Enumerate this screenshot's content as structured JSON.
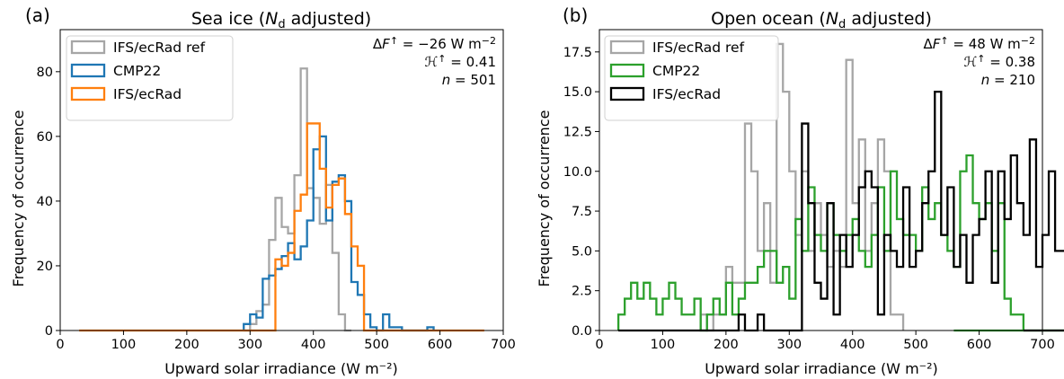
{
  "chart_data": [
    {
      "type": "histogram",
      "panel_label": "(a)",
      "title": "Sea ice (Nd adjusted)",
      "title_parts": {
        "prefix": "Sea ice (",
        "symbol": "N",
        "subscript": "d",
        "suffix": " adjusted)"
      },
      "xlabel": "Upward solar irradiance (W m⁻²)",
      "ylabel": "Frequency of occurrence",
      "xlim": [
        0,
        700
      ],
      "ylim": [
        0,
        93
      ],
      "xticks": [
        0,
        100,
        200,
        300,
        400,
        500,
        600,
        700
      ],
      "yticks": [
        0,
        20,
        40,
        60,
        80
      ],
      "ytick_labels": [
        "0",
        "20",
        "40",
        "60",
        "80"
      ],
      "bin_width": 10,
      "legend_position": "upper-left",
      "legend": [
        "IFS/ecRad ref",
        "CMP22",
        "IFS/ecRad"
      ],
      "annotations": [
        "ΔF↑ = −26 W m⁻²",
        "ℋ↑ = 0.41",
        "n = 501"
      ],
      "series": [
        {
          "name": "IFS/ecRad ref",
          "color": "#a6a6a6",
          "x_start": 290,
          "x_end": 460,
          "values": [
            0,
            2,
            6,
            8,
            28,
            41,
            32,
            30,
            48,
            81,
            44,
            41,
            33,
            45,
            24,
            5,
            0
          ]
        },
        {
          "name": "CMP22",
          "color": "#1f77b4",
          "x_start": 290,
          "x_end": 590,
          "values": [
            2,
            5,
            4,
            16,
            17,
            19,
            23,
            27,
            22,
            26,
            34,
            56,
            60,
            34,
            46,
            48,
            40,
            15,
            11,
            5,
            1,
            0,
            5,
            1,
            1,
            0,
            0,
            0,
            0,
            1
          ]
        },
        {
          "name": "IFS/ecRad",
          "color": "#ff7f0e",
          "x_start": 30,
          "x_end": 670,
          "values": [
            0,
            0,
            0,
            0,
            0,
            0,
            0,
            0,
            0,
            0,
            0,
            0,
            0,
            0,
            0,
            0,
            0,
            0,
            0,
            0,
            0,
            0,
            0,
            0,
            0,
            0,
            0,
            0,
            0,
            0,
            0,
            22,
            20,
            24,
            37,
            42,
            64,
            64,
            50,
            38,
            45,
            47,
            36,
            26,
            20,
            0,
            0,
            0,
            0,
            0,
            0,
            0,
            0,
            0,
            0,
            0,
            0,
            0,
            0,
            0,
            0,
            0,
            0,
            0
          ]
        }
      ]
    },
    {
      "type": "histogram",
      "panel_label": "(b)",
      "title": "Open ocean (Nd adjusted)",
      "title_parts": {
        "prefix": "Open ocean (",
        "symbol": "N",
        "subscript": "d",
        "suffix": " adjusted)"
      },
      "xlabel": "Upward solar irradiance (W m⁻²)",
      "ylabel": "Frequency of occurrence",
      "xlim": [
        0,
        700
      ],
      "ylim": [
        0,
        18.9
      ],
      "xticks": [
        0,
        100,
        200,
        300,
        400,
        500,
        600,
        700
      ],
      "yticks": [
        0,
        2.5,
        5,
        7.5,
        10,
        12.5,
        15,
        17.5
      ],
      "ytick_labels": [
        "0.0",
        "2.5",
        "5.0",
        "7.5",
        "10.0",
        "12.5",
        "15.0",
        "17.5"
      ],
      "bin_width": 10,
      "legend_position": "upper-left",
      "legend": [
        "IFS/ecRad ref",
        "CMP22",
        "IFS/ecRad"
      ],
      "annotations": [
        "ΔF↑ = 48 W m⁻²",
        "ℋ↑ = 0.38",
        "n = 210"
      ],
      "series": [
        {
          "name": "IFS/ecRad ref",
          "color": "#a6a6a6",
          "x_start": 160,
          "x_end": 480,
          "values": [
            1,
            0,
            1,
            1,
            4,
            3,
            3,
            13,
            10,
            5,
            8,
            3,
            18,
            15,
            10,
            6,
            10,
            5,
            8,
            6,
            4,
            5,
            4,
            17,
            8,
            12,
            5,
            8,
            12,
            10,
            1,
            1
          ]
        },
        {
          "name": "CMP22",
          "color": "#2ca02c",
          "x_start": 30,
          "x_end": 560,
          "values": [
            1,
            2,
            3,
            2,
            3,
            2,
            1,
            2,
            3,
            2,
            1,
            1,
            2,
            0,
            1,
            2,
            1,
            3,
            1,
            2,
            3,
            3,
            4,
            5,
            5,
            3,
            4,
            2,
            7,
            5,
            9,
            6,
            5,
            8,
            6,
            5,
            6,
            7,
            5,
            4,
            6,
            9,
            5,
            10,
            7,
            6,
            6,
            5,
            9,
            7,
            8,
            6,
            5,
            4,
            10,
            11,
            8,
            7,
            8,
            5,
            8,
            2,
            1,
            1,
            0,
            0,
            0,
            0,
            0,
            0,
            0,
            0,
            0,
            1,
            0,
            0,
            0,
            0,
            0,
            0,
            0,
            0,
            0,
            0,
            0,
            1,
            0,
            0,
            0,
            0,
            0,
            0,
            0,
            0,
            0,
            0,
            0,
            0,
            0,
            0,
            0,
            0,
            0,
            0,
            0,
            0
          ]
        },
        {
          "name": "IFS/ecRad",
          "color": "#000000",
          "x_start": 30,
          "x_end": 670,
          "values": [
            0,
            0,
            0,
            0,
            0,
            0,
            0,
            0,
            0,
            0,
            0,
            0,
            0,
            0,
            0,
            0,
            0,
            0,
            0,
            1,
            0,
            0,
            1,
            0,
            0,
            0,
            0,
            0,
            0,
            13,
            8,
            3,
            2,
            8,
            1,
            6,
            4,
            6,
            9,
            10,
            9,
            1,
            6,
            5,
            4,
            9,
            4,
            5,
            8,
            10,
            15,
            6,
            9,
            4,
            6,
            3,
            6,
            7,
            10,
            3,
            10,
            7,
            11,
            8,
            6,
            12,
            4,
            6,
            10,
            5,
            5,
            4,
            8,
            9,
            8,
            8,
            5,
            10,
            1,
            0,
            0,
            0,
            0,
            0,
            0,
            0,
            0,
            0,
            0,
            0,
            0,
            0,
            0,
            0,
            0,
            0,
            0,
            0,
            0,
            0,
            0,
            0,
            0,
            0,
            0,
            0,
            0,
            0,
            0,
            0
          ]
        }
      ]
    }
  ]
}
